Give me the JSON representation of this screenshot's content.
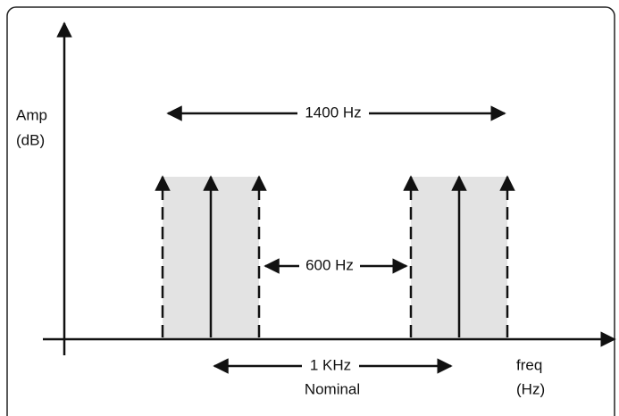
{
  "y_axis_label": [
    "Amp",
    "(dB)"
  ],
  "x_axis_label": [
    "freq",
    "(Hz)"
  ],
  "spans": [
    {
      "label": "1400 Hz"
    },
    {
      "label": "600 Hz"
    },
    {
      "label": "1 KHz",
      "sublabel": "Nominal"
    }
  ]
}
